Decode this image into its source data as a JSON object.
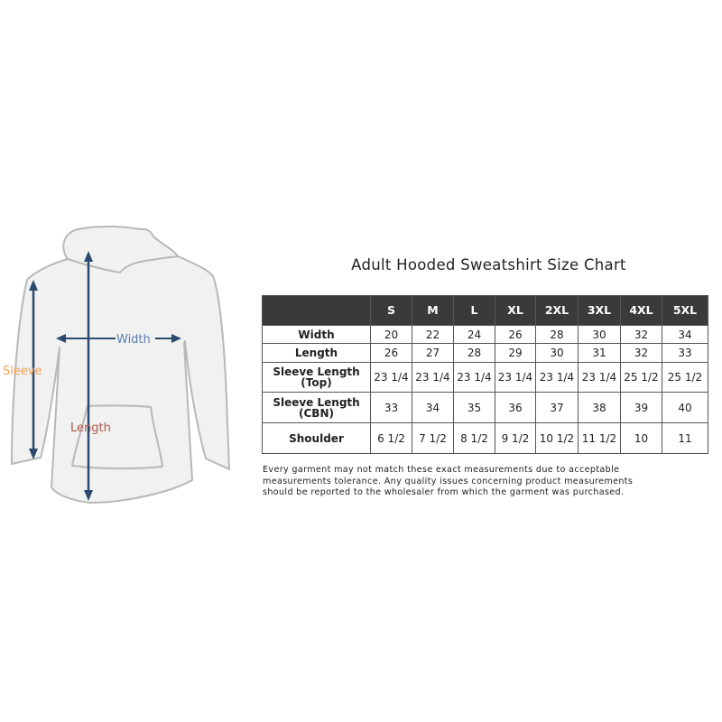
{
  "diagram": {
    "labels": {
      "width": "Width",
      "sleeve": "Sleeve",
      "length": "Length"
    },
    "colors": {
      "arrow": "#2c4a6e",
      "width_label": "#5a7fae",
      "sleeve_label": "#f0a050",
      "length_label": "#b0584a",
      "outline": "#b8b8b8",
      "fill": "#f1f1f1"
    }
  },
  "title": "Adult Hooded Sweatshirt Size Chart",
  "table": {
    "header_bg": "#3a3a3a",
    "sizes": [
      "S",
      "M",
      "L",
      "XL",
      "2XL",
      "3XL",
      "4XL",
      "5XL"
    ],
    "rows": [
      {
        "label": "Width",
        "values": [
          "20",
          "22",
          "24",
          "26",
          "28",
          "30",
          "32",
          "34"
        ]
      },
      {
        "label": "Length",
        "values": [
          "26",
          "27",
          "28",
          "29",
          "30",
          "31",
          "32",
          "33"
        ]
      },
      {
        "label": "Sleeve Length (Top)",
        "values": [
          "23 1/4",
          "23 1/4",
          "23 1/4",
          "23 1/4",
          "23 1/4",
          "23 1/4",
          "25 1/2",
          "25 1/2"
        ]
      },
      {
        "label": "Sleeve Length (CBN)",
        "values": [
          "33",
          "34",
          "35",
          "36",
          "37",
          "38",
          "39",
          "40"
        ]
      },
      {
        "label": "Shoulder",
        "values": [
          "6 1/2",
          "7 1/2",
          "8 1/2",
          "9 1/2",
          "10 1/2",
          "11 1/2",
          "10",
          "11"
        ]
      }
    ]
  },
  "note": "Every garment may not match these exact measurements due to acceptable\nmeasurements tolerance. Any quality issues concerning product measurements\nshould be reported to the wholesaler from which the garment was purchased."
}
